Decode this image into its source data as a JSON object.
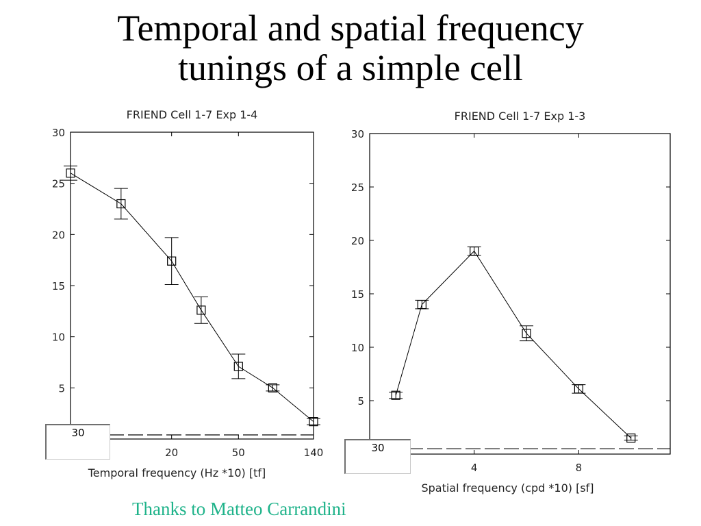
{
  "slide": {
    "title_line1": "Temporal and spatial frequency",
    "title_line2": "tunings of a simple cell",
    "credit": "Thanks to Matteo Carrandini"
  },
  "chart_data": [
    {
      "type": "line",
      "title": "FRIEND Cell 1-7 Exp 1-4",
      "xlabel": "Temporal frequency (Hz *10) [tf]",
      "ylabel": "",
      "ylim": [
        0,
        30
      ],
      "yticks": [
        5,
        10,
        15,
        20,
        25,
        30
      ],
      "xticks": [
        "20",
        "50",
        "140"
      ],
      "x_scale": "log",
      "x": [
        5,
        10,
        20,
        30,
        50,
        80,
        140
      ],
      "y": [
        26,
        23,
        17.4,
        12.6,
        7.1,
        5.0,
        1.7
      ],
      "err": [
        0.7,
        1.5,
        2.3,
        1.3,
        1.2,
        0.3,
        0.3
      ],
      "baseline": 0.4,
      "inset_value": "30",
      "color": "#000000"
    },
    {
      "type": "line",
      "title": "FRIEND Cell 1-7 Exp 1-3",
      "xlabel": "Spatial frequency (cpd *10) [sf]",
      "ylabel": "",
      "ylim": [
        0,
        30
      ],
      "yticks": [
        5,
        10,
        15,
        20,
        25,
        30
      ],
      "xticks": [
        "4",
        "8"
      ],
      "x_scale": "linear",
      "x": [
        1,
        2,
        4,
        6,
        8,
        10
      ],
      "y": [
        5.5,
        14,
        19,
        11.3,
        6.1,
        1.5
      ],
      "err": [
        0.3,
        0.4,
        0.4,
        0.7,
        0.4,
        0.2
      ],
      "baseline": 0.5,
      "inset_value": "30",
      "color": "#000000"
    }
  ]
}
